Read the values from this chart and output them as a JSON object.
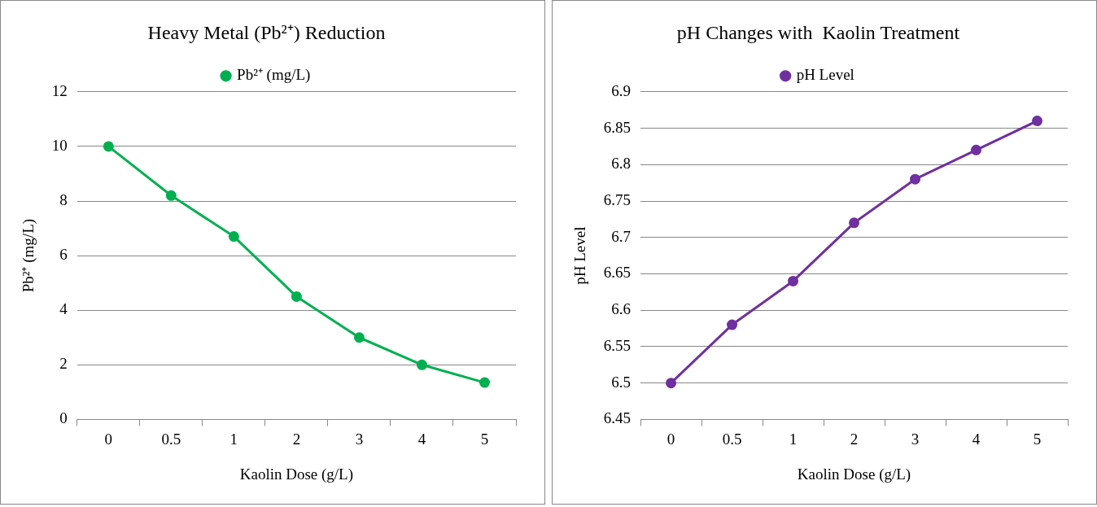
{
  "chart_data": [
    {
      "type": "line",
      "title": "Heavy Metal (Pb²⁺) Reduction",
      "xlabel": "Kaolin Dose (g/L)",
      "ylabel": "Pb²⁺ (mg/L)",
      "categories": [
        "0",
        "0.5",
        "1",
        "2",
        "3",
        "4",
        "5"
      ],
      "series": [
        {
          "name": "Pb²⁺ (mg/L)",
          "color": "#00b050",
          "values": [
            10,
            8.2,
            6.7,
            4.5,
            3.0,
            2.0,
            1.35
          ]
        }
      ],
      "ylim": [
        0,
        12
      ],
      "yticks": [
        0,
        2,
        4,
        6,
        8,
        10,
        12
      ],
      "grid": "y",
      "legend": "top",
      "marker": "circle",
      "line_style": "solid"
    },
    {
      "type": "line",
      "title": "pH Changes with  Kaolin Treatment",
      "xlabel": "Kaolin Dose (g/L)",
      "ylabel": "pH Level",
      "categories": [
        "0",
        "0.5",
        "1",
        "2",
        "3",
        "4",
        "5"
      ],
      "series": [
        {
          "name": "pH Level",
          "color": "#7030a0",
          "values": [
            6.5,
            6.58,
            6.64,
            6.72,
            6.78,
            6.82,
            6.86
          ]
        }
      ],
      "ylim": [
        6.45,
        6.9
      ],
      "yticks": [
        6.45,
        6.5,
        6.55,
        6.6,
        6.65,
        6.7,
        6.75,
        6.8,
        6.85,
        6.9
      ],
      "grid": "y",
      "legend": "top",
      "marker": "circle",
      "line_style": "solid"
    }
  ]
}
